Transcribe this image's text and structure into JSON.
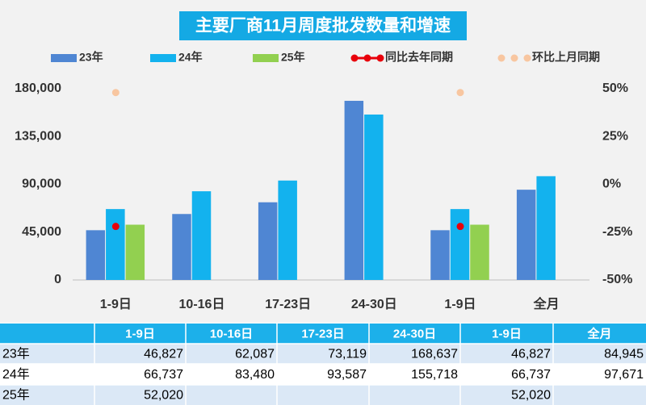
{
  "chart_data": {
    "type": "bar",
    "title": "主要厂商11月周度批发数量和增速",
    "categories": [
      "1-9日",
      "10-16日",
      "17-23日",
      "24-30日",
      "1-9日",
      "全月"
    ],
    "series": [
      {
        "name": "23年",
        "color": "#4f86d3",
        "values": [
          46827,
          62087,
          73119,
          168637,
          46827,
          84945
        ]
      },
      {
        "name": "24年",
        "color": "#13b2ee",
        "values": [
          66737,
          83480,
          93587,
          155718,
          66737,
          97671
        ]
      },
      {
        "name": "25年",
        "color": "#92d050",
        "values": [
          52020,
          null,
          null,
          null,
          52020,
          null
        ]
      },
      {
        "name": "同比去年同期",
        "color": "#e8000b",
        "axis": "y2",
        "type": "line",
        "values": [
          -22,
          null,
          null,
          null,
          -22,
          null
        ]
      },
      {
        "name": "环比上月同期",
        "color": "#f8c6a0",
        "axis": "y2",
        "type": "line",
        "values": [
          48,
          null,
          null,
          null,
          48,
          null
        ]
      }
    ],
    "ylim": [
      0,
      180000
    ],
    "yticks": [
      0,
      {
        "value": 45000,
        "label": "45,000"
      },
      {
        "value": 90000,
        "label": "90,000"
      },
      {
        "value": 135000,
        "label": "135,000"
      },
      {
        "value": 180000,
        "label": "180,000"
      }
    ],
    "y2lim": [
      -50,
      50
    ],
    "y2ticks": [
      {
        "value": -50,
        "label": "-50%"
      },
      {
        "value": -25,
        "label": "-25%"
      },
      {
        "value": 0,
        "label": "0%"
      },
      {
        "value": 25,
        "label": "25%"
      },
      {
        "value": 50,
        "label": "50%"
      }
    ],
    "grid": false
  },
  "table": {
    "rows": [
      [
        "46,827",
        "62,087",
        "73,119",
        "168,637",
        "46,827",
        "84,945"
      ],
      [
        "66,737",
        "83,480",
        "93,587",
        "155,718",
        "66,737",
        "97,671"
      ],
      [
        "52,020",
        null,
        null,
        null,
        "52,020",
        null
      ]
    ]
  }
}
